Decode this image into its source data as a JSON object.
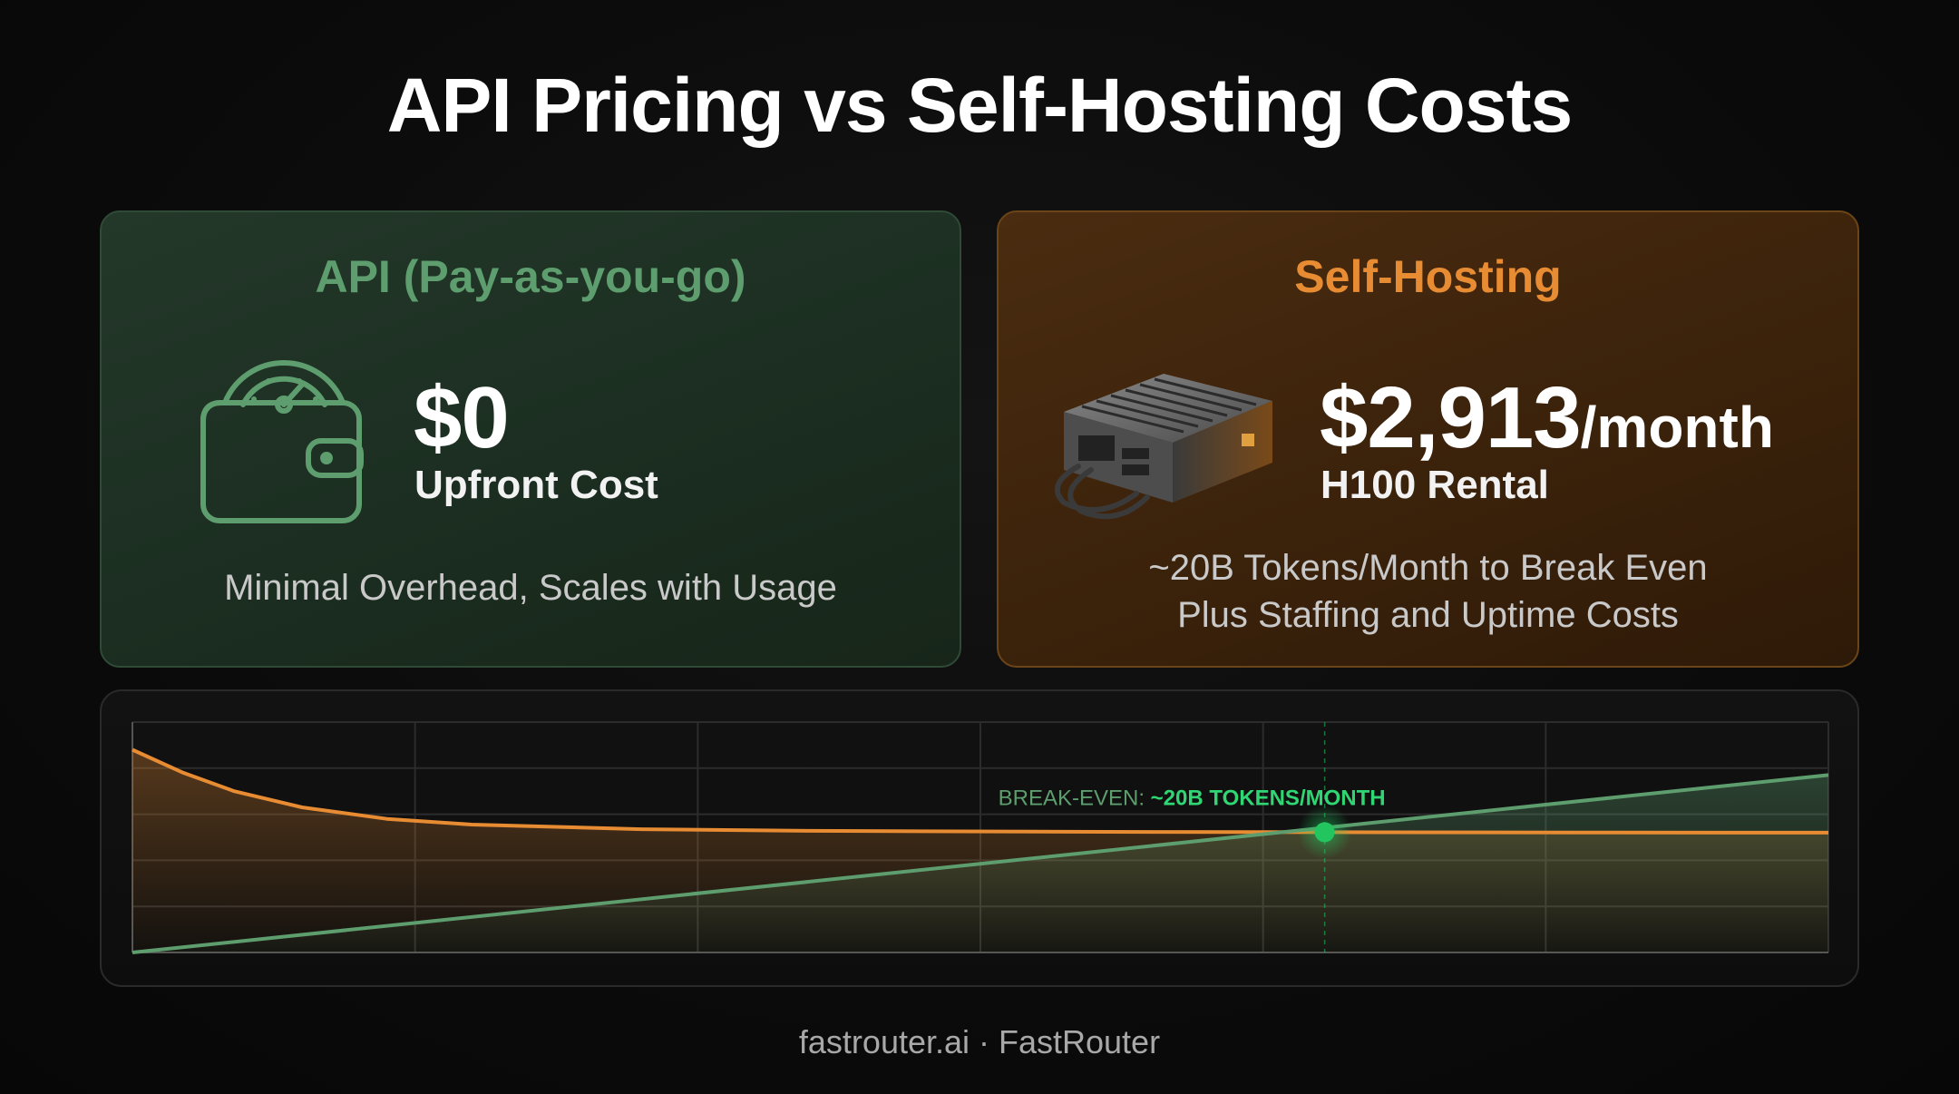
{
  "title": "API Pricing vs Self-Hosting Costs",
  "api_card": {
    "heading": "API (Pay-as-you-go)",
    "icon": "wallet-gauge-icon",
    "price": "$0",
    "price_label": "Upfront Cost",
    "note": "Minimal Overhead, Scales with Usage"
  },
  "self_card": {
    "heading": "Self-Hosting",
    "icon": "gpu-server-icon",
    "price": "$2,913",
    "price_unit": "/month",
    "price_label": "H100 Rental",
    "note_line1": "~20B Tokens/Month to Break Even",
    "note_line2": "Plus Staffing and Uptime Costs"
  },
  "colors": {
    "api_green": "#5d9d6e",
    "self_orange": "#e88c33",
    "breakeven_green": "#22c55e"
  },
  "chart_data": {
    "type": "line",
    "title": "",
    "xlabel": "",
    "ylabel": "",
    "grid": true,
    "xlim": [
      0,
      1
    ],
    "ylim": [
      0,
      1
    ],
    "series": [
      {
        "color": "#e88c33",
        "points": [
          [
            0,
            0.88
          ],
          [
            0.03,
            0.78
          ],
          [
            0.06,
            0.7
          ],
          [
            0.1,
            0.63
          ],
          [
            0.15,
            0.58
          ],
          [
            0.2,
            0.555
          ],
          [
            0.3,
            0.535
          ],
          [
            0.4,
            0.528
          ],
          [
            0.55,
            0.524
          ],
          [
            0.7,
            0.522
          ],
          [
            0.85,
            0.521
          ],
          [
            1,
            0.52
          ]
        ]
      },
      {
        "color": "#5d9d6e",
        "points": [
          [
            0,
            0
          ],
          [
            1,
            0.77
          ]
        ]
      }
    ],
    "annotation": {
      "prefix": "BREAK-EVEN: ",
      "highlight": "~20B TOKENS/MONTH",
      "x": 0.703,
      "y": 0.522
    }
  },
  "footer": "fastrouter.ai · FastRouter"
}
